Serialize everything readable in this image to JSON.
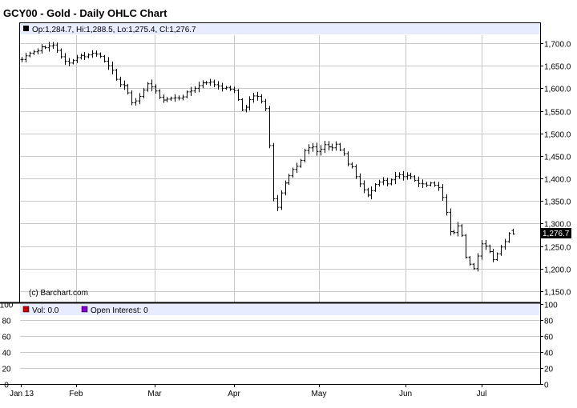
{
  "header": {
    "title": "GCY00 - Gold - Daily OHLC Chart"
  },
  "price_panel": {
    "info_text": "Op:1,284.7, Hi:1,288.5, Lo:1,275.4, Cl:1,276.7",
    "copyright": "(c) Barchart.com",
    "last_price_label": "1,276.7",
    "info_marker_color": "#000000"
  },
  "volume_panel": {
    "vol_text": "Vol: 0.0",
    "oi_text": "Open Interest: 0",
    "vol_color": "#cc0000",
    "oi_color": "#8800cc"
  },
  "colors": {
    "info_bar": "#e8ecff",
    "grid": "#c8c8c8",
    "bars": "#000000"
  },
  "chart_data": [
    {
      "type": "ohlc",
      "title": "GCY00 - Gold - Daily OHLC Chart",
      "ylim": [
        1135,
        1725
      ],
      "y_ticks": [
        1150,
        1200,
        1250,
        1300,
        1350,
        1400,
        1450,
        1500,
        1550,
        1600,
        1650,
        1700
      ],
      "y_tick_labels": [
        "1,150.0",
        "1,200.0",
        "1,250.0",
        "1,300.0",
        "1,350.0",
        "1,400.0",
        "1,450.0",
        "1,500.0",
        "1,550.0",
        "1,600.0",
        "1,650.0",
        "1,700.0"
      ],
      "x_months": [
        "Jan 13",
        "Feb",
        "Mar",
        "Apr",
        "May",
        "Jun",
        "Jul"
      ],
      "last_bar": {
        "open": 1284.7,
        "high": 1288.5,
        "low": 1275.4,
        "close": 1276.7
      },
      "grid": true,
      "closes": [
        1664,
        1672,
        1678,
        1681,
        1683,
        1692,
        1690,
        1694,
        1696,
        1684,
        1670,
        1660,
        1656,
        1662,
        1668,
        1673,
        1670,
        1674,
        1678,
        1676,
        1671,
        1660,
        1650,
        1640,
        1620,
        1608,
        1606,
        1590,
        1568,
        1572,
        1582,
        1596,
        1610,
        1603,
        1594,
        1580,
        1574,
        1576,
        1578,
        1579,
        1578,
        1581,
        1592,
        1594,
        1600,
        1606,
        1612,
        1612,
        1614,
        1608,
        1605,
        1600,
        1602,
        1598,
        1595,
        1575,
        1552,
        1558,
        1575,
        1583,
        1582,
        1571,
        1555,
        1473,
        1355,
        1336,
        1368,
        1390,
        1406,
        1420,
        1427,
        1440,
        1462,
        1468,
        1470,
        1460,
        1465,
        1475,
        1470,
        1468,
        1476,
        1463,
        1455,
        1432,
        1426,
        1404,
        1388,
        1375,
        1363,
        1373,
        1387,
        1392,
        1396,
        1388,
        1397,
        1405,
        1408,
        1404,
        1407,
        1404,
        1396,
        1389,
        1388,
        1385,
        1390,
        1385,
        1380,
        1358,
        1325,
        1282,
        1280,
        1295,
        1274,
        1225,
        1210,
        1200,
        1228,
        1255,
        1250,
        1238,
        1220,
        1233,
        1248,
        1260,
        1278,
        1276.7
      ]
    },
    {
      "type": "bar",
      "series": [
        {
          "name": "Vol",
          "values": [
            0.0
          ]
        },
        {
          "name": "Open Interest",
          "values": [
            0
          ]
        }
      ],
      "ylim": [
        0,
        100
      ],
      "y_ticks": [
        0,
        20,
        40,
        60,
        80,
        100
      ],
      "y_tick_labels": [
        "0",
        "20",
        "40",
        "60",
        "80",
        "100"
      ]
    }
  ]
}
